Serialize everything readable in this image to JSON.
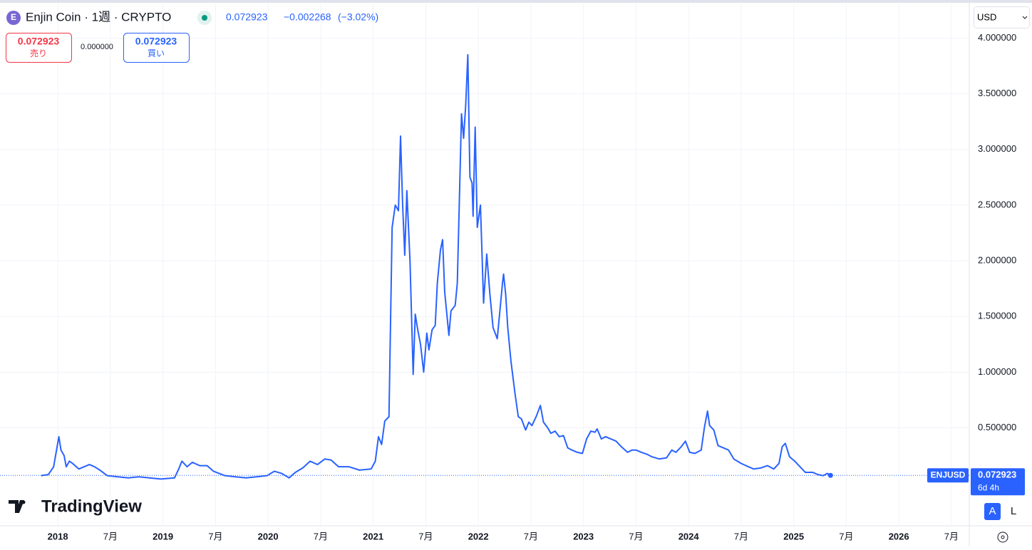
{
  "chart_data": {
    "type": "line",
    "title": "Enjin Coin · 1週 · CRYPTO",
    "x": [
      2017.84,
      2017.91,
      2017.96,
      2018.01,
      2018.03,
      2018.06,
      2018.08,
      2018.11,
      2018.14,
      2018.2,
      2018.25,
      2018.3,
      2018.35,
      2018.4,
      2018.47,
      2018.57,
      2018.67,
      2018.77,
      2018.87,
      2018.98,
      2019.11,
      2019.15,
      2019.18,
      2019.23,
      2019.28,
      2019.35,
      2019.42,
      2019.48,
      2019.59,
      2019.69,
      2019.79,
      2019.89,
      2019.99,
      2020.06,
      2020.13,
      2020.2,
      2020.26,
      2020.33,
      2020.4,
      2020.47,
      2020.54,
      2020.6,
      2020.67,
      2020.77,
      2020.87,
      2020.98,
      2021.02,
      2021.05,
      2021.08,
      2021.11,
      2021.15,
      2021.18,
      2021.21,
      2021.24,
      2021.26,
      2021.28,
      2021.3,
      2021.32,
      2021.35,
      2021.38,
      2021.4,
      2021.42,
      2021.45,
      2021.48,
      2021.51,
      2021.53,
      2021.56,
      2021.59,
      2021.61,
      2021.64,
      2021.66,
      2021.68,
      2021.72,
      2021.74,
      2021.78,
      2021.8,
      2021.84,
      2021.86,
      2021.88,
      2021.9,
      2021.92,
      2021.94,
      2021.95,
      2021.97,
      2021.99,
      2022.02,
      2022.05,
      2022.08,
      2022.11,
      2022.14,
      2022.18,
      2022.2,
      2022.23,
      2022.24,
      2022.26,
      2022.28,
      2022.31,
      2022.35,
      2022.38,
      2022.41,
      2022.45,
      2022.48,
      2022.51,
      2022.55,
      2022.59,
      2022.62,
      2022.66,
      2022.69,
      2022.73,
      2022.77,
      2022.81,
      2022.85,
      2022.89,
      2022.94,
      2022.99,
      2023.03,
      2023.07,
      2023.11,
      2023.13,
      2023.17,
      2023.21,
      2023.26,
      2023.31,
      2023.36,
      2023.42,
      2023.46,
      2023.5,
      2023.55,
      2023.61,
      2023.65,
      2023.72,
      2023.79,
      2023.84,
      2023.88,
      2023.93,
      2023.97,
      2024.01,
      2024.06,
      2024.12,
      2024.15,
      2024.18,
      2024.2,
      2024.24,
      2024.28,
      2024.33,
      2024.38,
      2024.43,
      2024.5,
      2024.57,
      2024.62,
      2024.69,
      2024.75,
      2024.81,
      2024.86,
      2024.89,
      2024.92,
      2024.96,
      2025.01,
      2025.06,
      2025.11,
      2025.18,
      2025.23,
      2025.28,
      2025.32,
      2025.35
    ],
    "series": [
      {
        "name": "ENJUSD",
        "color": "#2962ff",
        "values": [
          0.07,
          0.08,
          0.15,
          0.42,
          0.3,
          0.25,
          0.15,
          0.2,
          0.18,
          0.13,
          0.15,
          0.17,
          0.15,
          0.12,
          0.07,
          0.06,
          0.05,
          0.06,
          0.05,
          0.04,
          0.05,
          0.13,
          0.2,
          0.15,
          0.19,
          0.16,
          0.16,
          0.11,
          0.07,
          0.06,
          0.05,
          0.06,
          0.07,
          0.11,
          0.09,
          0.05,
          0.1,
          0.14,
          0.2,
          0.17,
          0.22,
          0.21,
          0.15,
          0.15,
          0.12,
          0.13,
          0.2,
          0.42,
          0.35,
          0.56,
          0.6,
          2.3,
          2.5,
          2.45,
          3.12,
          2.5,
          2.05,
          2.63,
          2.0,
          0.98,
          1.52,
          1.4,
          1.25,
          1.0,
          1.35,
          1.2,
          1.38,
          1.42,
          1.8,
          2.1,
          2.19,
          1.72,
          1.33,
          1.55,
          1.6,
          1.8,
          3.32,
          3.1,
          3.4,
          3.85,
          2.75,
          2.7,
          2.4,
          3.2,
          2.3,
          2.5,
          1.62,
          2.06,
          1.7,
          1.4,
          1.3,
          1.5,
          1.8,
          1.88,
          1.7,
          1.4,
          1.1,
          0.8,
          0.6,
          0.58,
          0.48,
          0.55,
          0.52,
          0.6,
          0.7,
          0.55,
          0.5,
          0.45,
          0.47,
          0.42,
          0.43,
          0.32,
          0.3,
          0.28,
          0.27,
          0.4,
          0.47,
          0.46,
          0.49,
          0.4,
          0.42,
          0.4,
          0.38,
          0.33,
          0.28,
          0.3,
          0.3,
          0.28,
          0.26,
          0.24,
          0.22,
          0.23,
          0.3,
          0.28,
          0.33,
          0.38,
          0.28,
          0.27,
          0.3,
          0.5,
          0.65,
          0.52,
          0.48,
          0.34,
          0.32,
          0.3,
          0.22,
          0.18,
          0.15,
          0.13,
          0.14,
          0.16,
          0.13,
          0.18,
          0.33,
          0.36,
          0.24,
          0.2,
          0.15,
          0.1,
          0.1,
          0.08,
          0.07,
          0.09,
          0.072923
        ]
      }
    ],
    "xlim": [
      2017.45,
      2026.67
    ],
    "xticks": [
      2018,
      {
        "value": 2018.5,
        "label": "7月"
      },
      2019,
      {
        "value": 2019.5,
        "label": "7月"
      },
      2020,
      {
        "value": 2020.5,
        "label": "7月"
      },
      2021,
      {
        "value": 2021.5,
        "label": "7月"
      },
      2022,
      {
        "value": 2022.5,
        "label": "7月"
      },
      2023,
      {
        "value": 2023.5,
        "label": "7月"
      },
      2024,
      {
        "value": 2024.5,
        "label": "7月"
      },
      2025,
      {
        "value": 2025.5,
        "label": "7月"
      },
      2026,
      {
        "value": 2026.5,
        "label": "7月"
      }
    ],
    "ylim": [
      -0.38,
      4.31
    ],
    "yticks": [
      {
        "value": 0.5,
        "label": "0.500000"
      },
      {
        "value": 1,
        "label": "1.000000"
      },
      {
        "value": 1.5,
        "label": "1.500000"
      },
      {
        "value": 2,
        "label": "2.000000"
      },
      {
        "value": 2.5,
        "label": "2.500000"
      },
      {
        "value": 3,
        "label": "3.000000"
      },
      {
        "value": 3.5,
        "label": "3.500000"
      },
      {
        "value": 4,
        "label": "4.000000"
      }
    ],
    "grid": true
  },
  "ui": {
    "price": "0.072923",
    "change": "−0.002268",
    "change_pct": "(−3.02%)",
    "sell_price": "0.072923",
    "sell_label": "売り",
    "spread": "0.000000",
    "buy_price": "0.072923",
    "buy_label": "買い",
    "currency": "USD",
    "tag_symbol": "ENJUSD",
    "tag_price": "0.072923",
    "tag_countdown": "6d 4h",
    "brand": "TradingView",
    "btn_auto": "A",
    "btn_log": "L"
  }
}
